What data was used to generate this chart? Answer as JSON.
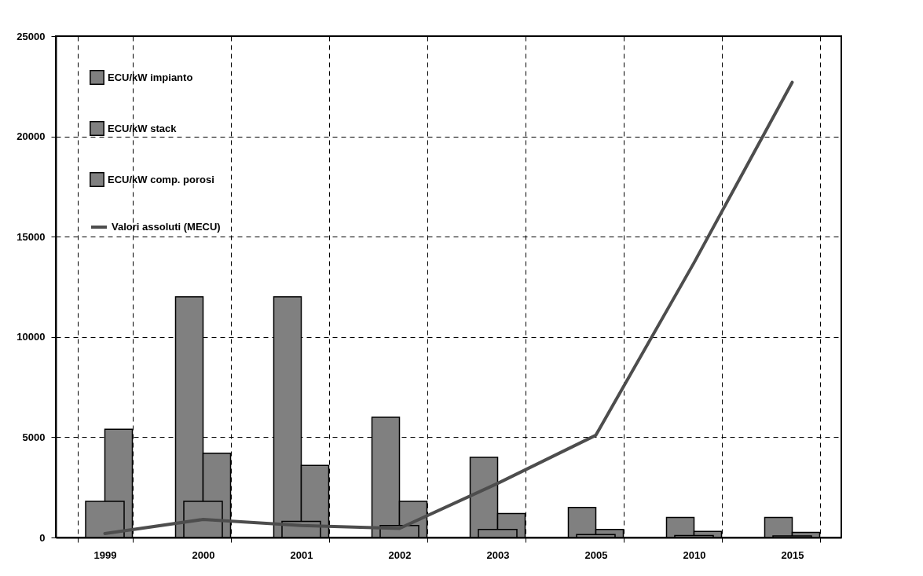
{
  "chart_data": {
    "type": "bar",
    "categories": [
      "1999",
      "2000",
      "2001",
      "2002",
      "2003",
      "2005",
      "2010",
      "2015"
    ],
    "series": [
      {
        "name": "ECU/kW impianto",
        "color": "#808080",
        "values": [
          null,
          12000,
          12000,
          6000,
          4000,
          1500,
          1000,
          1000
        ]
      },
      {
        "name": "ECU/kW stack",
        "color": "#808080",
        "values": [
          5400,
          4200,
          3600,
          1800,
          1200,
          400,
          300,
          250
        ]
      },
      {
        "name": "ECU/kW comp. porosi",
        "color": "#808080",
        "values": [
          1800,
          1800,
          800,
          600,
          400,
          150,
          100,
          80
        ]
      },
      {
        "name": "Valori assoluti (MECU)",
        "type": "line",
        "color": "#4d4d4d",
        "values": [
          200,
          900,
          600,
          450,
          2700,
          5100,
          13700,
          22700
        ]
      }
    ],
    "ylim": [
      0,
      25000
    ],
    "yticks": [
      0,
      5000,
      10000,
      15000,
      20000,
      25000
    ],
    "grid": true,
    "legend": "top left"
  }
}
